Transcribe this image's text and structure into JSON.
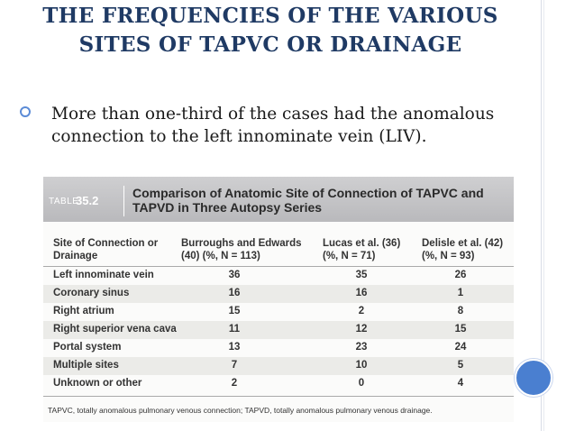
{
  "slide": {
    "title": "THE FREQUENCIES OF THE VARIOUS SITES OF TAPVC OR DRAINAGE",
    "bullet_text": "More than one-third of the cases had the anomalous connection to the left innominate vein (LIV)."
  },
  "table": {
    "label": "TABLE",
    "number": "35.2",
    "caption": "Comparison of Anatomic Site of Connection of TAPVC and TAPVD in Three Autopsy Series",
    "columns": [
      "Site of Connection or Drainage",
      "Burroughs and Edwards (40) (%, N = 113)",
      "Lucas et al. (36) (%, N = 71)",
      "Delisle et al. (42) (%, N = 93)"
    ],
    "rows": [
      [
        "Left innominate vein",
        "36",
        "35",
        "26"
      ],
      [
        "Coronary sinus",
        "16",
        "16",
        "1"
      ],
      [
        "Right atrium",
        "15",
        "2",
        "8"
      ],
      [
        "Right superior vena cava",
        "11",
        "12",
        "15"
      ],
      [
        "Portal system",
        "13",
        "23",
        "24"
      ],
      [
        "Multiple sites",
        "7",
        "10",
        "5"
      ],
      [
        "Unknown or other",
        "2",
        "0",
        "4"
      ]
    ],
    "footnote": "TAPVC, totally anomalous pulmonary venous connection; TAPVD, totally anomalous pulmonary venous drainage."
  },
  "colors": {
    "title": "#1f3a64",
    "bullet": "#5b8bd6",
    "circle": "#4a7fd0",
    "table_header": "#c4c4c6"
  },
  "icons": [
    "hollow-circle-bullet-icon",
    "decorative-blue-circle-icon"
  ]
}
